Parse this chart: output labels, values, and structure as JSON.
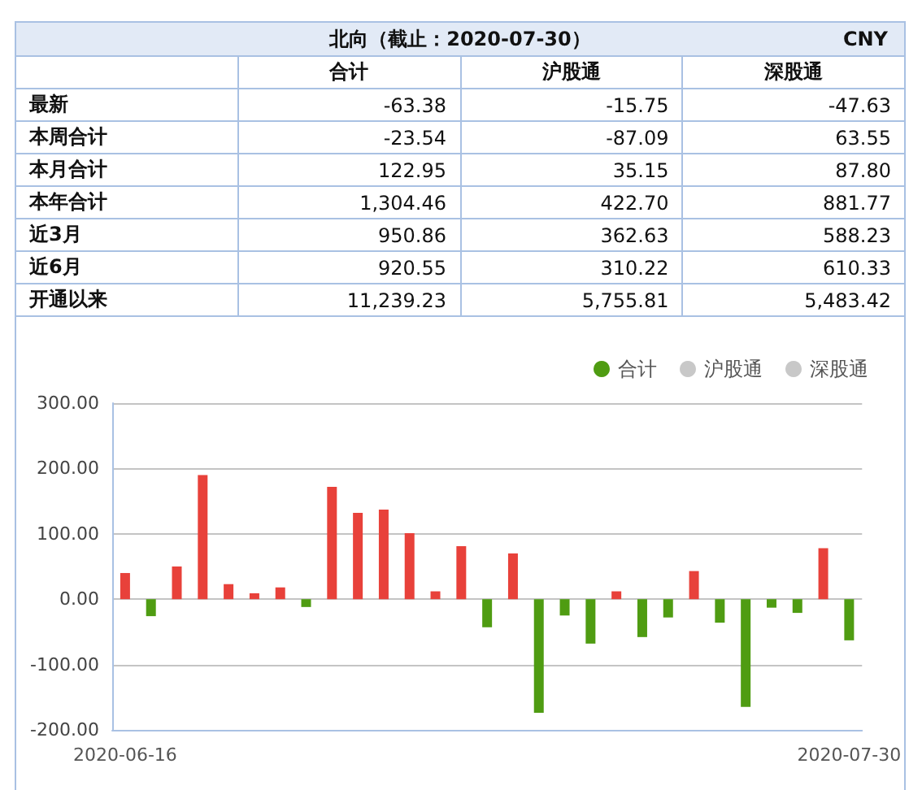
{
  "chart_data": [
    {
      "type": "other",
      "title": "北向（截止：2020-07-30）",
      "annotations": [
        "CNY"
      ],
      "categories": [
        "最新",
        "本周合计",
        "本月合计",
        "本年合计",
        "近3月",
        "近6月",
        "开通以来"
      ],
      "series": [
        {
          "name": "合计",
          "values": [
            -63.38,
            -23.54,
            122.95,
            1304.46,
            950.86,
            920.55,
            11239.23
          ],
          "value_labels": [
            "-63.38",
            "-23.54",
            "122.95",
            "1,304.46",
            "950.86",
            "920.55",
            "11,239.23"
          ]
        },
        {
          "name": "沪股通",
          "values": [
            -15.75,
            -87.09,
            35.15,
            422.7,
            362.63,
            310.22,
            5755.81
          ],
          "value_labels": [
            "-15.75",
            "-87.09",
            "35.15",
            "422.70",
            "362.63",
            "310.22",
            "5,755.81"
          ]
        },
        {
          "name": "深股通",
          "values": [
            -47.63,
            63.55,
            87.8,
            881.77,
            588.23,
            610.33,
            5483.42
          ],
          "value_labels": [
            "-47.63",
            "63.55",
            "87.80",
            "881.77",
            "588.23",
            "610.33",
            "5,483.42"
          ]
        }
      ]
    },
    {
      "type": "bar",
      "categories": [
        "2020-06-16",
        null,
        null,
        null,
        null,
        null,
        null,
        null,
        null,
        null,
        null,
        null,
        null,
        null,
        null,
        null,
        null,
        null,
        null,
        null,
        null,
        null,
        null,
        null,
        null,
        null,
        null,
        null,
        "2020-07-30"
      ],
      "series": [
        {
          "name": "合计",
          "color": "#4f9c12",
          "colors": [
            "#e8413a",
            "#4f9c12",
            "#e8413a",
            "#e8413a",
            "#e8413a",
            "#e8413a",
            "#e8413a",
            "#4f9c12",
            "#e8413a",
            "#e8413a",
            "#e8413a",
            "#e8413a",
            "#e8413a",
            "#e8413a",
            "#4f9c12",
            "#e8413a",
            "#4f9c12",
            "#4f9c12",
            "#4f9c12",
            "#e8413a",
            "#4f9c12",
            "#4f9c12",
            "#e8413a",
            "#4f9c12",
            "#4f9c12",
            "#4f9c12",
            "#4f9c12",
            "#e8413a",
            "#4f9c12"
          ],
          "values": [
            40,
            -26,
            50,
            190,
            23,
            9,
            18,
            -12,
            172,
            132,
            137,
            101,
            12,
            81,
            -43,
            70,
            -174,
            -25,
            -68,
            12,
            -58,
            -28,
            43,
            -36,
            -165,
            -13,
            -21,
            78,
            -63
          ]
        },
        {
          "name": "沪股通",
          "color": "#c8c8c8",
          "values": [
            null,
            null,
            null,
            null,
            null,
            null,
            null,
            null,
            null,
            null,
            null,
            null,
            null,
            null,
            null,
            null,
            null,
            null,
            null,
            null,
            null,
            null,
            null,
            null,
            null,
            null,
            null,
            null,
            null
          ]
        },
        {
          "name": "深股通",
          "color": "#c8c8c8",
          "values": [
            null,
            null,
            null,
            null,
            null,
            null,
            null,
            null,
            null,
            null,
            null,
            null,
            null,
            null,
            null,
            null,
            null,
            null,
            null,
            null,
            null,
            null,
            null,
            null,
            null,
            null,
            null,
            null,
            null
          ]
        }
      ],
      "ylim": [
        -200,
        300
      ],
      "yticks": [
        {
          "value": -200,
          "label": "-200.00"
        },
        {
          "value": -100,
          "label": "-100.00"
        },
        {
          "value": 0,
          "label": "0.00"
        },
        {
          "value": 100,
          "label": "100.00"
        },
        {
          "value": 200,
          "label": "200.00"
        },
        {
          "value": 300,
          "label": "300.00"
        }
      ],
      "grid": "y",
      "legend": "top right"
    }
  ]
}
